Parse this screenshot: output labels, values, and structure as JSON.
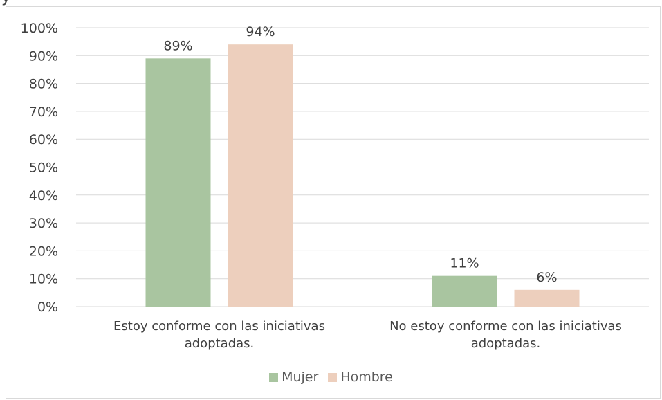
{
  "page_title_fragment": "y",
  "chart_data": {
    "type": "bar",
    "categories": [
      [
        "Estoy conforme con las iniciativas",
        "adoptadas."
      ],
      [
        "No estoy conforme con las iniciativas",
        "adoptadas."
      ]
    ],
    "series": [
      {
        "name": "Mujer",
        "values": [
          89,
          11
        ],
        "labels": [
          "89%",
          "11%"
        ],
        "color": "#a9c5a0"
      },
      {
        "name": "Hombre",
        "values": [
          94,
          6
        ],
        "labels": [
          "94%",
          "6%"
        ],
        "color": "#edcfbd"
      }
    ],
    "yticks": [
      "0%",
      "10%",
      "20%",
      "30%",
      "40%",
      "50%",
      "60%",
      "70%",
      "80%",
      "90%",
      "100%"
    ],
    "ylim": [
      0,
      100
    ],
    "grid": true,
    "legend_position": "bottom",
    "gridline_color": "#d9d9d9"
  }
}
